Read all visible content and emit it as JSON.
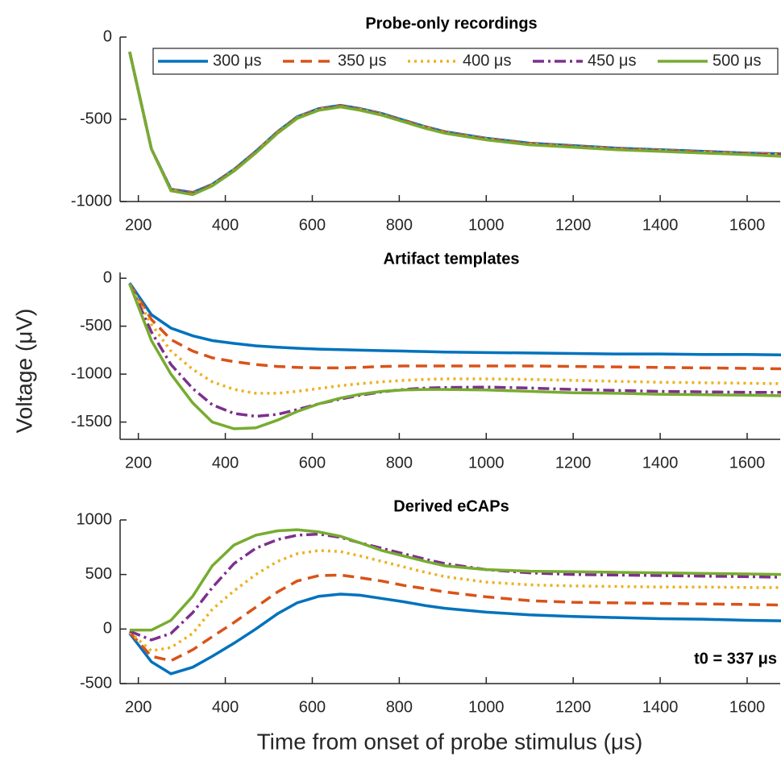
{
  "ylabel": "Voltage (μV)",
  "xlabel": "Time from onset of probe stimulus  (μs)",
  "chart_data": [
    {
      "type": "line",
      "title": "Probe-only recordings",
      "legend": "top-right",
      "x": [
        180,
        230,
        275,
        325,
        370,
        420,
        470,
        520,
        565,
        615,
        665,
        710,
        760,
        810,
        860,
        905,
        1000,
        1100,
        1200,
        1300,
        1400,
        1500,
        1600,
        1680
      ],
      "xlim": [
        158,
        1676
      ],
      "xticks": [
        200,
        400,
        600,
        800,
        1000,
        1200,
        1400,
        1600
      ],
      "ylim": [
        -1000,
        0
      ],
      "yticks": [
        -1000,
        -500,
        0
      ],
      "series": [
        {
          "name": "300 μs",
          "color": "#0072bd",
          "linestyle": "-",
          "values": [
            -90,
            -680,
            -925,
            -945,
            -895,
            -805,
            -695,
            -575,
            -485,
            -435,
            -415,
            -435,
            -465,
            -505,
            -545,
            -575,
            -615,
            -645,
            -660,
            -675,
            -685,
            -695,
            -705,
            -710
          ]
        },
        {
          "name": "350 μs",
          "color": "#d95319",
          "linestyle": "--",
          "values": [
            -90,
            -680,
            -928,
            -948,
            -898,
            -808,
            -698,
            -578,
            -488,
            -438,
            -418,
            -438,
            -468,
            -508,
            -548,
            -578,
            -618,
            -648,
            -663,
            -678,
            -688,
            -698,
            -708,
            -713
          ]
        },
        {
          "name": "400 μs",
          "color": "#edb120",
          "linestyle": ":",
          "values": [
            -90,
            -680,
            -930,
            -950,
            -900,
            -810,
            -700,
            -580,
            -490,
            -440,
            -420,
            -440,
            -470,
            -510,
            -550,
            -580,
            -620,
            -650,
            -665,
            -680,
            -690,
            -700,
            -710,
            -715
          ]
        },
        {
          "name": "450 μs",
          "color": "#7e2f8e",
          "linestyle": "-.",
          "values": [
            -90,
            -680,
            -932,
            -952,
            -902,
            -812,
            -702,
            -582,
            -492,
            -442,
            -422,
            -442,
            -472,
            -512,
            -552,
            -582,
            -622,
            -652,
            -667,
            -682,
            -692,
            -702,
            -712,
            -718
          ]
        },
        {
          "name": "500 μs",
          "color": "#77ac30",
          "linestyle": "-",
          "values": [
            -90,
            -680,
            -935,
            -958,
            -905,
            -815,
            -705,
            -585,
            -495,
            -445,
            -425,
            -445,
            -475,
            -515,
            -555,
            -585,
            -625,
            -655,
            -670,
            -685,
            -695,
            -705,
            -715,
            -725
          ]
        }
      ]
    },
    {
      "type": "line",
      "title": "Artifact templates",
      "x": [
        180,
        230,
        275,
        325,
        370,
        420,
        470,
        520,
        565,
        615,
        665,
        710,
        760,
        810,
        860,
        905,
        1000,
        1100,
        1200,
        1300,
        1400,
        1500,
        1600,
        1680
      ],
      "xlim": [
        158,
        1676
      ],
      "xticks": [
        200,
        400,
        600,
        800,
        1000,
        1200,
        1400,
        1600
      ],
      "ylim": [
        -1680,
        60
      ],
      "yticks": [
        -1500,
        -1000,
        -500,
        0
      ],
      "series": [
        {
          "color": "#0072bd",
          "linestyle": "-",
          "values": [
            -50,
            -380,
            -520,
            -600,
            -650,
            -680,
            -705,
            -720,
            -730,
            -740,
            -745,
            -750,
            -755,
            -760,
            -765,
            -770,
            -775,
            -780,
            -785,
            -790,
            -790,
            -795,
            -795,
            -800
          ]
        },
        {
          "color": "#d95319",
          "linestyle": "--",
          "values": [
            -60,
            -430,
            -640,
            -760,
            -830,
            -870,
            -900,
            -920,
            -930,
            -935,
            -935,
            -930,
            -920,
            -915,
            -915,
            -915,
            -915,
            -915,
            -920,
            -925,
            -930,
            -935,
            -940,
            -945
          ]
        },
        {
          "color": "#edb120",
          "linestyle": ":",
          "values": [
            -60,
            -480,
            -760,
            -950,
            -1080,
            -1160,
            -1200,
            -1200,
            -1180,
            -1150,
            -1120,
            -1100,
            -1080,
            -1065,
            -1055,
            -1050,
            -1050,
            -1055,
            -1065,
            -1075,
            -1085,
            -1090,
            -1095,
            -1100
          ]
        },
        {
          "color": "#7e2f8e",
          "linestyle": "-.",
          "values": [
            -60,
            -560,
            -900,
            -1150,
            -1320,
            -1410,
            -1440,
            -1420,
            -1370,
            -1310,
            -1260,
            -1220,
            -1185,
            -1160,
            -1145,
            -1140,
            -1135,
            -1145,
            -1160,
            -1170,
            -1180,
            -1185,
            -1190,
            -1190
          ]
        },
        {
          "color": "#77ac30",
          "linestyle": "-",
          "values": [
            -60,
            -650,
            -1000,
            -1300,
            -1500,
            -1570,
            -1560,
            -1480,
            -1390,
            -1310,
            -1250,
            -1210,
            -1180,
            -1165,
            -1160,
            -1160,
            -1165,
            -1180,
            -1195,
            -1200,
            -1210,
            -1215,
            -1220,
            -1225
          ]
        }
      ]
    },
    {
      "type": "line",
      "title": "Derived eCAPs",
      "annotation": "t0 = 337 μs",
      "x": [
        180,
        230,
        275,
        325,
        370,
        420,
        470,
        520,
        565,
        615,
        665,
        710,
        760,
        810,
        860,
        905,
        1000,
        1100,
        1200,
        1300,
        1400,
        1500,
        1600,
        1680
      ],
      "xlim": [
        158,
        1676
      ],
      "xticks": [
        200,
        400,
        600,
        800,
        1000,
        1200,
        1400,
        1600
      ],
      "ylim": [
        -500,
        1000
      ],
      "yticks": [
        -500,
        0,
        500,
        1000
      ],
      "series": [
        {
          "color": "#0072bd",
          "linestyle": "-",
          "values": [
            -40,
            -300,
            -410,
            -350,
            -250,
            -130,
            0,
            140,
            240,
            300,
            320,
            310,
            280,
            250,
            215,
            190,
            155,
            130,
            115,
            105,
            95,
            90,
            80,
            75
          ]
        },
        {
          "color": "#d95319",
          "linestyle": "--",
          "values": [
            -30,
            -250,
            -290,
            -190,
            -70,
            60,
            200,
            340,
            440,
            490,
            495,
            470,
            440,
            400,
            370,
            340,
            295,
            260,
            245,
            240,
            235,
            230,
            225,
            220
          ]
        },
        {
          "color": "#edb120",
          "linestyle": ":",
          "values": [
            -30,
            -200,
            -170,
            -40,
            180,
            350,
            500,
            620,
            690,
            720,
            710,
            670,
            620,
            570,
            520,
            480,
            430,
            405,
            395,
            390,
            385,
            385,
            380,
            380
          ]
        },
        {
          "color": "#7e2f8e",
          "linestyle": "-.",
          "values": [
            -20,
            -100,
            -40,
            150,
            380,
            600,
            740,
            820,
            860,
            870,
            840,
            790,
            740,
            690,
            640,
            600,
            545,
            515,
            500,
            495,
            490,
            485,
            480,
            475
          ]
        },
        {
          "color": "#77ac30",
          "linestyle": "-",
          "values": [
            -10,
            -10,
            80,
            300,
            580,
            770,
            860,
            900,
            910,
            890,
            850,
            790,
            720,
            670,
            620,
            580,
            545,
            530,
            525,
            520,
            515,
            510,
            505,
            500
          ]
        }
      ]
    }
  ]
}
